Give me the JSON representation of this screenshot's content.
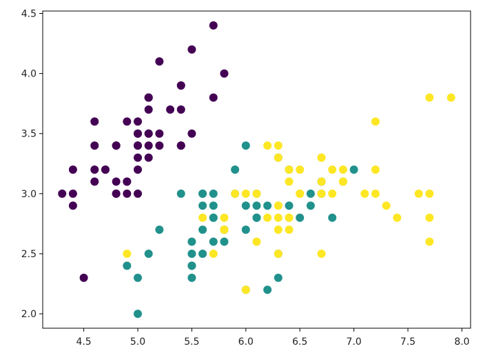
{
  "chart_data": {
    "type": "scatter",
    "title": "",
    "xlabel": "",
    "ylabel": "",
    "xlim": [
      4.12,
      8.08
    ],
    "ylim": [
      1.88,
      4.52
    ],
    "grid": false,
    "legend": "none",
    "x_ticks": [
      4.5,
      5.0,
      5.5,
      6.0,
      6.5,
      7.0,
      7.5,
      8.0
    ],
    "x_tick_labels": [
      "4.5",
      "5.0",
      "5.5",
      "6.0",
      "6.5",
      "7.0",
      "7.5",
      "8.0"
    ],
    "y_ticks": [
      2.0,
      2.5,
      3.0,
      3.5,
      4.0,
      4.5
    ],
    "y_tick_labels": [
      "2.0",
      "2.5",
      "3.0",
      "3.5",
      "4.0",
      "4.5"
    ],
    "series": [
      {
        "color": "#440154",
        "points": [
          [
            5.1,
            3.5
          ],
          [
            4.9,
            3.0
          ],
          [
            4.7,
            3.2
          ],
          [
            4.6,
            3.1
          ],
          [
            5.0,
            3.6
          ],
          [
            5.4,
            3.9
          ],
          [
            4.6,
            3.4
          ],
          [
            5.0,
            3.4
          ],
          [
            4.4,
            2.9
          ],
          [
            4.9,
            3.1
          ],
          [
            5.4,
            3.7
          ],
          [
            4.8,
            3.4
          ],
          [
            4.8,
            3.0
          ],
          [
            4.3,
            3.0
          ],
          [
            5.8,
            4.0
          ],
          [
            5.7,
            4.4
          ],
          [
            5.4,
            3.9
          ],
          [
            5.1,
            3.5
          ],
          [
            5.7,
            3.8
          ],
          [
            5.1,
            3.8
          ],
          [
            5.4,
            3.4
          ],
          [
            5.1,
            3.7
          ],
          [
            4.6,
            3.6
          ],
          [
            5.1,
            3.3
          ],
          [
            4.8,
            3.4
          ],
          [
            5.0,
            3.0
          ],
          [
            5.0,
            3.4
          ],
          [
            5.2,
            3.5
          ],
          [
            5.2,
            3.4
          ],
          [
            4.7,
            3.2
          ],
          [
            4.8,
            3.1
          ],
          [
            5.4,
            3.4
          ],
          [
            5.2,
            4.1
          ],
          [
            5.5,
            4.2
          ],
          [
            4.9,
            3.1
          ],
          [
            5.0,
            3.2
          ],
          [
            5.5,
            3.5
          ],
          [
            4.9,
            3.6
          ],
          [
            4.4,
            3.0
          ],
          [
            5.1,
            3.4
          ],
          [
            5.0,
            3.5
          ],
          [
            4.5,
            2.3
          ],
          [
            4.4,
            3.2
          ],
          [
            5.0,
            3.5
          ],
          [
            5.1,
            3.8
          ],
          [
            4.8,
            3.0
          ],
          [
            5.1,
            3.8
          ],
          [
            4.6,
            3.2
          ],
          [
            5.3,
            3.7
          ],
          [
            5.0,
            3.3
          ]
        ]
      },
      {
        "color": "#21918c",
        "points": [
          [
            7.0,
            3.2
          ],
          [
            6.4,
            3.2
          ],
          [
            6.9,
            3.1
          ],
          [
            5.5,
            2.3
          ],
          [
            6.5,
            2.8
          ],
          [
            5.7,
            2.8
          ],
          [
            6.3,
            3.3
          ],
          [
            4.9,
            2.4
          ],
          [
            6.6,
            2.9
          ],
          [
            5.2,
            2.7
          ],
          [
            5.0,
            2.0
          ],
          [
            5.9,
            3.0
          ],
          [
            6.0,
            2.2
          ],
          [
            6.1,
            2.9
          ],
          [
            5.6,
            2.9
          ],
          [
            6.7,
            3.1
          ],
          [
            5.6,
            3.0
          ],
          [
            5.8,
            2.7
          ],
          [
            6.2,
            2.2
          ],
          [
            5.6,
            2.5
          ],
          [
            5.9,
            3.2
          ],
          [
            6.1,
            2.8
          ],
          [
            6.3,
            2.5
          ],
          [
            6.1,
            2.8
          ],
          [
            6.4,
            2.9
          ],
          [
            6.6,
            3.0
          ],
          [
            6.8,
            2.8
          ],
          [
            6.7,
            3.0
          ],
          [
            6.0,
            2.9
          ],
          [
            5.7,
            2.6
          ],
          [
            5.5,
            2.4
          ],
          [
            5.5,
            2.4
          ],
          [
            5.8,
            2.7
          ],
          [
            6.0,
            2.7
          ],
          [
            5.4,
            3.0
          ],
          [
            6.0,
            3.4
          ],
          [
            6.7,
            3.1
          ],
          [
            6.3,
            2.3
          ],
          [
            5.6,
            3.0
          ],
          [
            5.5,
            2.5
          ],
          [
            5.5,
            2.6
          ],
          [
            6.1,
            3.0
          ],
          [
            5.8,
            2.6
          ],
          [
            5.0,
            2.3
          ],
          [
            5.6,
            2.7
          ],
          [
            5.7,
            3.0
          ],
          [
            5.7,
            2.9
          ],
          [
            6.2,
            2.9
          ],
          [
            5.1,
            2.5
          ],
          [
            5.7,
            2.8
          ]
        ]
      },
      {
        "color": "#fde725",
        "points": [
          [
            6.3,
            3.3
          ],
          [
            5.8,
            2.7
          ],
          [
            7.1,
            3.0
          ],
          [
            6.3,
            2.9
          ],
          [
            6.5,
            3.0
          ],
          [
            7.6,
            3.0
          ],
          [
            4.9,
            2.5
          ],
          [
            7.3,
            2.9
          ],
          [
            6.7,
            2.5
          ],
          [
            7.2,
            3.6
          ],
          [
            6.5,
            3.2
          ],
          [
            6.4,
            2.7
          ],
          [
            6.8,
            3.0
          ],
          [
            5.7,
            2.5
          ],
          [
            5.8,
            2.8
          ],
          [
            6.4,
            3.2
          ],
          [
            6.5,
            3.0
          ],
          [
            7.7,
            3.8
          ],
          [
            7.7,
            2.6
          ],
          [
            6.0,
            2.2
          ],
          [
            6.9,
            3.2
          ],
          [
            5.6,
            2.8
          ],
          [
            7.7,
            2.8
          ],
          [
            6.3,
            2.7
          ],
          [
            6.7,
            3.3
          ],
          [
            7.2,
            3.2
          ],
          [
            6.2,
            2.8
          ],
          [
            6.1,
            3.0
          ],
          [
            6.4,
            2.8
          ],
          [
            7.2,
            3.0
          ],
          [
            7.4,
            2.8
          ],
          [
            7.9,
            3.8
          ],
          [
            6.4,
            2.8
          ],
          [
            6.3,
            2.8
          ],
          [
            6.1,
            2.6
          ],
          [
            7.7,
            3.0
          ],
          [
            6.3,
            3.4
          ],
          [
            6.4,
            3.1
          ],
          [
            6.0,
            3.0
          ],
          [
            6.9,
            3.1
          ],
          [
            6.7,
            3.1
          ],
          [
            6.9,
            3.1
          ],
          [
            5.8,
            2.7
          ],
          [
            6.8,
            3.2
          ],
          [
            6.7,
            3.3
          ],
          [
            6.7,
            3.0
          ],
          [
            6.3,
            2.5
          ],
          [
            6.5,
            3.0
          ],
          [
            6.2,
            3.4
          ],
          [
            5.9,
            3.0
          ]
        ]
      }
    ]
  }
}
